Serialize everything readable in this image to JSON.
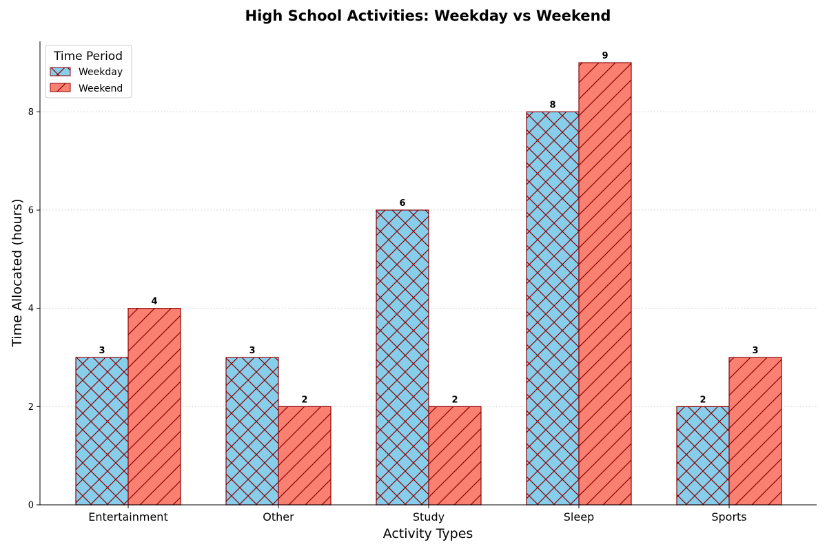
{
  "chart_data": {
    "type": "bar",
    "title": "High School Activities: Weekday vs Weekend",
    "xlabel": "Activity Types",
    "ylabel": "Time Allocated (hours)",
    "categories": [
      "Entertainment",
      "Other",
      "Study",
      "Sleep",
      "Sports"
    ],
    "series": [
      {
        "name": "Weekday",
        "values": [
          3,
          3,
          6,
          8,
          2
        ],
        "color": "#87CEEB",
        "hatch": "cross"
      },
      {
        "name": "Weekend",
        "values": [
          4,
          2,
          2,
          9,
          3
        ],
        "color": "#FA8072",
        "hatch": "diagonal"
      }
    ],
    "edge_color": "#8B0000",
    "ylim": [
      0,
      9.45
    ],
    "yticks": [
      0,
      2,
      4,
      6,
      8
    ],
    "grid": "horizontal-dotted",
    "legend": {
      "title": "Time Period",
      "position": "top-left"
    }
  }
}
